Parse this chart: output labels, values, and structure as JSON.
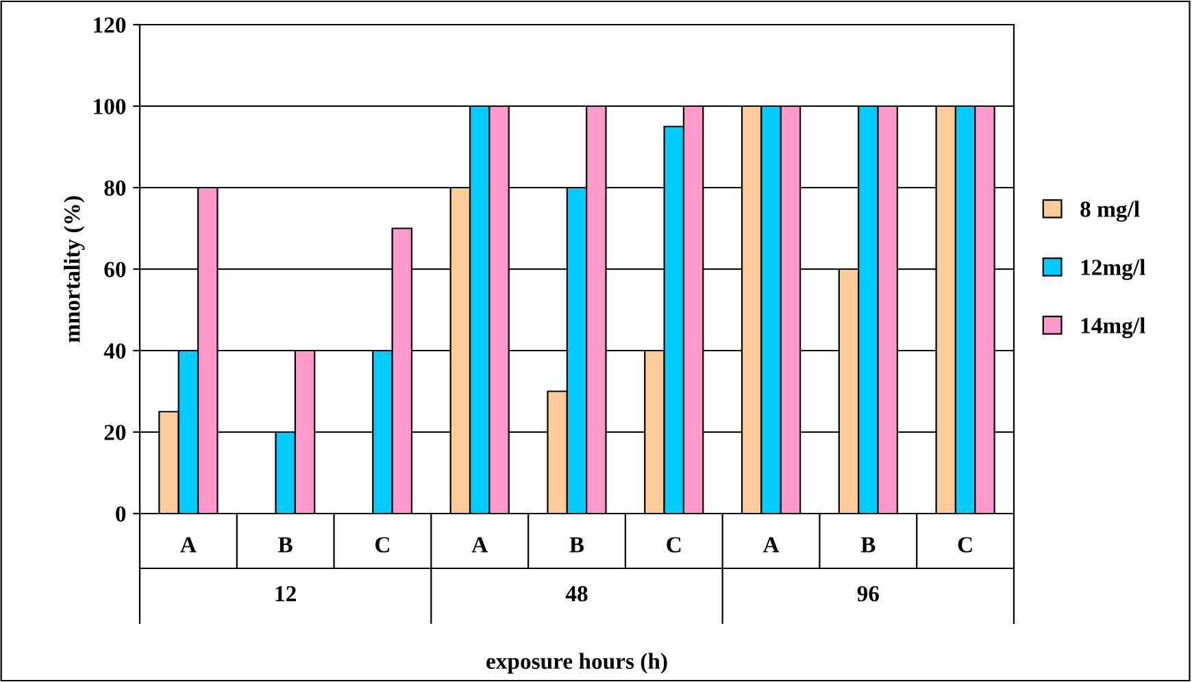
{
  "chart_data": {
    "type": "bar",
    "xlabel": "exposure hours (h)",
    "ylabel": "mnortality (%)",
    "categories": [
      "A",
      "B",
      "C",
      "A",
      "B",
      "C",
      "A",
      "B",
      "C"
    ],
    "annotations": [
      "12",
      "48",
      "96"
    ],
    "series": [
      {
        "name": "8 mg/l",
        "color": "#ffcc99",
        "values": [
          25,
          null,
          null,
          80,
          30,
          40,
          100,
          60,
          100
        ]
      },
      {
        "name": "12mg/l",
        "color": "#00ccff",
        "values": [
          40,
          20,
          40,
          100,
          80,
          95,
          100,
          100,
          100
        ]
      },
      {
        "name": "14mg/l",
        "color": "#ff99cc",
        "values": [
          80,
          40,
          70,
          100,
          100,
          100,
          100,
          100,
          100
        ]
      }
    ],
    "ylim": [
      0,
      120
    ],
    "yticks": [
      0,
      20,
      40,
      60,
      80,
      100,
      120
    ],
    "grid": "y",
    "legend": "right"
  }
}
